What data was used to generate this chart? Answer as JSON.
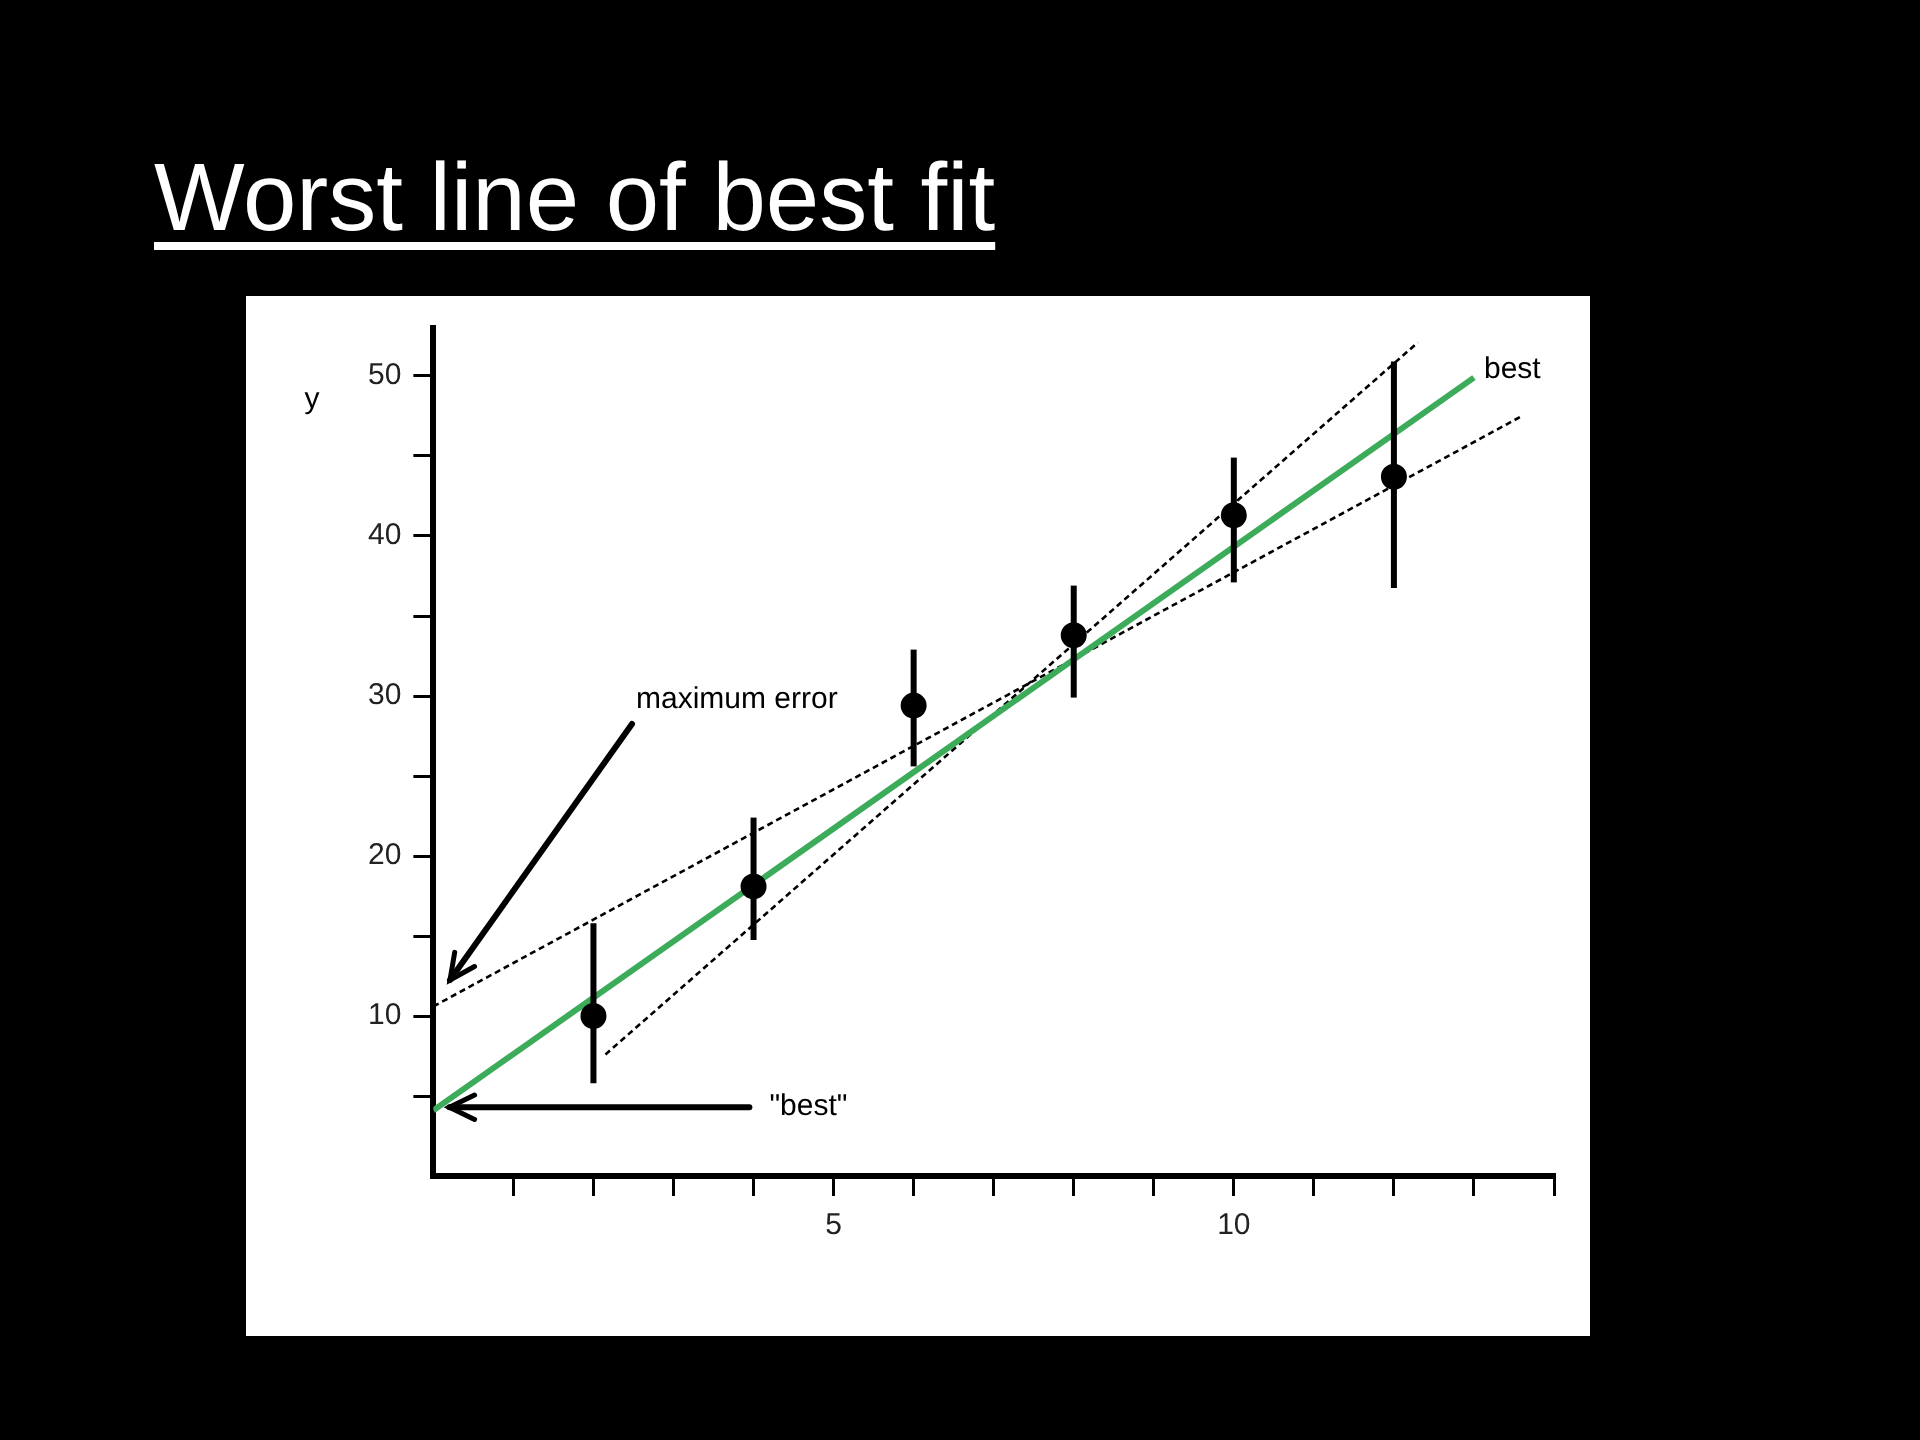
{
  "chart_data": {
    "type": "scatter",
    "title": "Worst line of best fit",
    "ylabel": "y",
    "x": [
      2,
      4,
      6,
      8,
      10,
      12
    ],
    "xlim": [
      0,
      14
    ],
    "ylim": [
      0,
      53
    ],
    "xticks": [
      {
        "value": 1,
        "label": null
      },
      {
        "value": 2,
        "label": null
      },
      {
        "value": 3,
        "label": null
      },
      {
        "value": 4,
        "label": null
      },
      5,
      {
        "value": 6,
        "label": null
      },
      {
        "value": 7,
        "label": null
      },
      {
        "value": 8,
        "label": null
      },
      {
        "value": 9,
        "label": null
      },
      10,
      {
        "value": 11,
        "label": null
      },
      {
        "value": 12,
        "label": null
      },
      {
        "value": 13,
        "label": null
      },
      {
        "value": 14,
        "label": null
      }
    ],
    "yticks": [
      {
        "value": 5,
        "label": null
      },
      10,
      {
        "value": 15,
        "label": null
      },
      20,
      {
        "value": 25,
        "label": null
      },
      30,
      {
        "value": 35,
        "label": null
      },
      40,
      {
        "value": 45,
        "label": null
      },
      50
    ],
    "grid": false,
    "legend": false,
    "marker": "circle",
    "series": [
      {
        "type": "scatter",
        "color": "#000000",
        "values": [
          10.0,
          18.1,
          29.4,
          33.8,
          41.3,
          43.7
        ],
        "errors": [
          [
            5.8,
            15.8
          ],
          [
            14.75,
            22.4
          ],
          [
            25.6,
            32.9
          ],
          [
            29.9,
            36.9
          ],
          [
            37.1,
            44.9
          ],
          [
            36.75,
            50.9
          ]
        ]
      },
      {
        "type": "line",
        "name": "best",
        "color": "#3cab5a",
        "x": [
          0,
          13
        ],
        "values": [
          4.1,
          49.9
        ],
        "marker": "none",
        "line_style": "solid"
      },
      {
        "type": "line",
        "color": "#000000",
        "x": [
          2.15,
          12.3
        ],
        "values": [
          7.6,
          52.1
        ],
        "marker": "none",
        "line_style": "dashed"
      },
      {
        "type": "line",
        "color": "#000000",
        "x": [
          0,
          13.6
        ],
        "values": [
          10.6,
          47.5
        ],
        "marker": "none",
        "line_style": "dashed"
      }
    ],
    "annotations": [
      "maximum error",
      {
        "text": "\"best\"",
        "x": 0.2,
        "y": 4.3
      }
    ]
  }
}
